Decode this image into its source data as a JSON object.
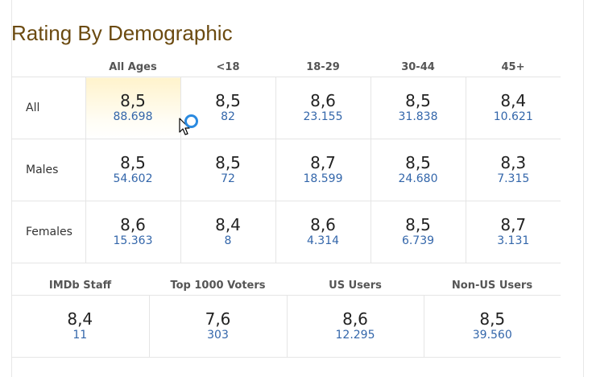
{
  "title": "Rating By Demographic",
  "age_columns": [
    "All Ages",
    "<18",
    "18-29",
    "30-44",
    "45+"
  ],
  "rows": [
    {
      "label": "All",
      "cells": [
        {
          "rating": "8,5",
          "votes": "88.698"
        },
        {
          "rating": "8,5",
          "votes": "82"
        },
        {
          "rating": "8,6",
          "votes": "23.155"
        },
        {
          "rating": "8,5",
          "votes": "31.838"
        },
        {
          "rating": "8,4",
          "votes": "10.621"
        }
      ]
    },
    {
      "label": "Males",
      "cells": [
        {
          "rating": "8,5",
          "votes": "54.602"
        },
        {
          "rating": "8,5",
          "votes": "72"
        },
        {
          "rating": "8,7",
          "votes": "18.599"
        },
        {
          "rating": "8,5",
          "votes": "24.680"
        },
        {
          "rating": "8,3",
          "votes": "7.315"
        }
      ]
    },
    {
      "label": "Females",
      "cells": [
        {
          "rating": "8,6",
          "votes": "15.363"
        },
        {
          "rating": "8,4",
          "votes": "8"
        },
        {
          "rating": "8,6",
          "votes": "4.314"
        },
        {
          "rating": "8,5",
          "votes": "6.739"
        },
        {
          "rating": "8,7",
          "votes": "3.131"
        }
      ]
    }
  ],
  "group_columns": [
    "IMDb Staff",
    "Top 1000 Voters",
    "US Users",
    "Non-US Users"
  ],
  "group_cells": [
    {
      "rating": "8,4",
      "votes": "11"
    },
    {
      "rating": "7,6",
      "votes": "303"
    },
    {
      "rating": "8,6",
      "votes": "12.295"
    },
    {
      "rating": "8,5",
      "votes": "39.560"
    }
  ],
  "colors": {
    "title": "#6b4a10",
    "votes_link": "#3366aa",
    "highlight": "#fff3cc",
    "busy_cursor": "#2a8ae0"
  },
  "cursor": {
    "icon": "arrow-busy-cursor-icon"
  }
}
